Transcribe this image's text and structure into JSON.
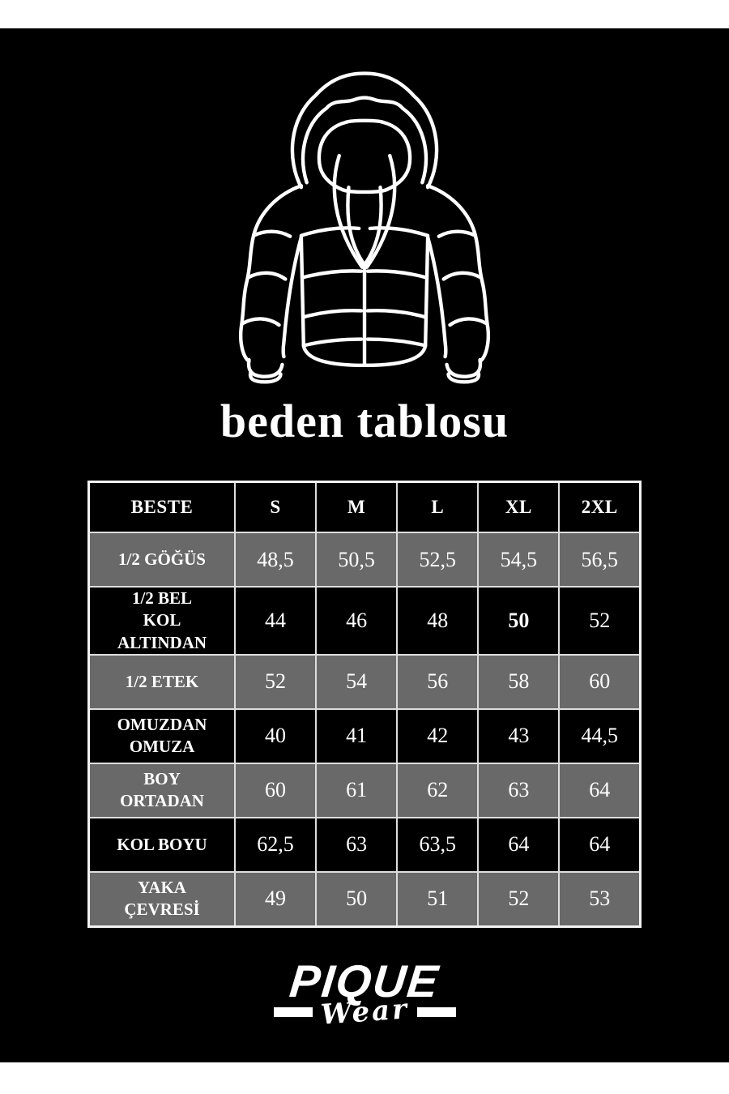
{
  "page": {
    "background": "#000000",
    "outer_strip_color": "#ffffff"
  },
  "chart_data": {
    "type": "table",
    "title": "beden tablosu",
    "columns": [
      "BESTE",
      "S",
      "M",
      "L",
      "XL",
      "2XL"
    ],
    "rows": [
      {
        "label": "1/2 GÖĞÜS",
        "values": [
          "48,5",
          "50,5",
          "52,5",
          "54,5",
          "56,5"
        ],
        "shade": "gray"
      },
      {
        "label": "1/2 BEL KOL ALTINDAN",
        "values": [
          "44",
          "46",
          "48",
          "50",
          "52"
        ],
        "shade": "black",
        "bold_index": 3
      },
      {
        "label": "1/2 ETEK",
        "values": [
          "52",
          "54",
          "56",
          "58",
          "60"
        ],
        "shade": "gray"
      },
      {
        "label": "OMUZDAN OMUZA",
        "values": [
          "40",
          "41",
          "42",
          "43",
          "44,5"
        ],
        "shade": "black"
      },
      {
        "label": "BOY ORTADAN",
        "values": [
          "60",
          "61",
          "62",
          "63",
          "64"
        ],
        "shade": "gray"
      },
      {
        "label": "KOL BOYU",
        "values": [
          "62,5",
          "63",
          "63,5",
          "64",
          "64"
        ],
        "shade": "black"
      },
      {
        "label": "YAKA ÇEVRESİ",
        "values": [
          "49",
          "50",
          "51",
          "52",
          "53"
        ],
        "shade": "gray"
      }
    ],
    "layout": {
      "row_shading": [
        "black-header",
        "alternating gray/black"
      ],
      "grid": "on"
    }
  },
  "brand": {
    "name": "PIQUE",
    "sub": "Wear"
  },
  "icons": {
    "jacket": "puffer-jacket-outline-icon"
  },
  "colors": {
    "row_gray": "#696969",
    "row_black": "#000000",
    "text": "#ffffff",
    "grid_border": "#dedede",
    "line_art": "#ffffff"
  }
}
